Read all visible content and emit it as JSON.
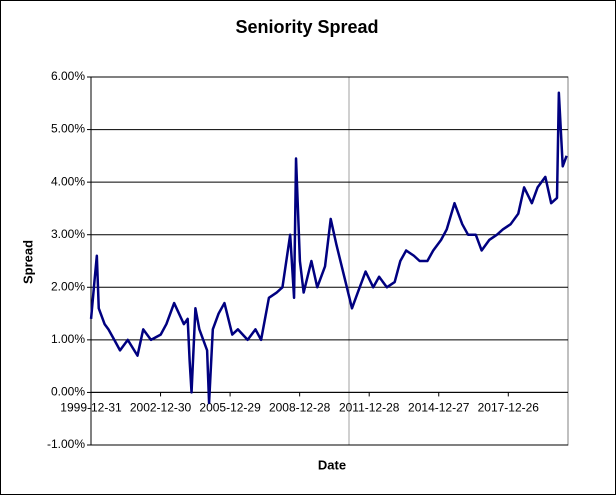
{
  "chart_data": {
    "type": "line",
    "title": "Seniority Spread",
    "x_label": "Date",
    "y_label": "Spread",
    "xlim": [
      "1999-12-31",
      "2020-07-23"
    ],
    "xticks": [
      "1999-12-31",
      "2002-12-30",
      "2005-12-29",
      "2008-12-28",
      "2011-12-28",
      "2014-12-27",
      "2017-12-26"
    ],
    "ylim": [
      -1,
      6
    ],
    "yticks": [
      {
        "value": -1,
        "label": "-1.00%"
      },
      {
        "value": 0,
        "label": "0.00%"
      },
      {
        "value": 1,
        "label": "1.00%"
      },
      {
        "value": 2,
        "label": "2.00%"
      },
      {
        "value": 3,
        "label": "3.00%"
      },
      {
        "value": 4,
        "label": "4.00%"
      },
      {
        "value": 5,
        "label": "5.00%"
      },
      {
        "value": 6,
        "label": "6.00%"
      }
    ],
    "grid": true,
    "x": [
      "2000-01",
      "2000-03",
      "2000-04",
      "2000-05",
      "2000-08",
      "2000-10",
      "2001-01",
      "2001-04",
      "2001-08",
      "2002-01",
      "2002-04",
      "2002-08",
      "2003-01",
      "2003-04",
      "2003-08",
      "2004-01",
      "2004-03",
      "2004-04",
      "2004-05",
      "2004-07",
      "2004-09",
      "2005-01",
      "2005-02",
      "2005-04",
      "2005-07",
      "2005-10",
      "2006-02",
      "2006-05",
      "2006-10",
      "2007-02",
      "2007-05",
      "2007-09",
      "2008-01",
      "2008-04",
      "2008-08",
      "2008-10",
      "2008-11",
      "2009-01",
      "2009-03",
      "2009-07",
      "2009-10",
      "2010-02",
      "2010-05",
      "2010-08",
      "2010-12",
      "2011-04",
      "2011-07",
      "2011-11",
      "2012-03",
      "2012-06",
      "2012-10",
      "2013-02",
      "2013-05",
      "2013-08",
      "2013-12",
      "2014-03",
      "2014-07",
      "2014-10",
      "2015-02",
      "2015-05",
      "2015-09",
      "2016-01",
      "2016-04",
      "2016-08",
      "2016-11",
      "2017-03",
      "2017-07",
      "2017-10",
      "2018-02",
      "2018-06",
      "2018-09",
      "2019-01",
      "2019-04",
      "2019-08",
      "2019-11",
      "2020-02",
      "2020-03",
      "2020-05",
      "2020-07"
    ],
    "series": [
      {
        "color": "#000080",
        "values": [
          1.4,
          2.2,
          2.6,
          1.6,
          1.3,
          1.2,
          1.0,
          0.8,
          1.0,
          0.7,
          1.2,
          1.0,
          1.1,
          1.3,
          1.7,
          1.3,
          1.4,
          0.6,
          0.0,
          1.6,
          1.2,
          0.8,
          -0.2,
          1.2,
          1.5,
          1.7,
          1.1,
          1.2,
          1.0,
          1.2,
          1.0,
          1.8,
          1.9,
          2.0,
          3.0,
          1.8,
          4.45,
          2.5,
          1.9,
          2.5,
          2.0,
          2.4,
          3.3,
          2.8,
          2.2,
          1.6,
          1.9,
          2.3,
          2.0,
          2.2,
          2.0,
          2.1,
          2.5,
          2.7,
          2.6,
          2.5,
          2.5,
          2.7,
          2.9,
          3.1,
          3.6,
          3.2,
          3.0,
          3.0,
          2.7,
          2.9,
          3.0,
          3.1,
          3.2,
          3.4,
          3.9,
          3.6,
          3.9,
          4.1,
          3.6,
          3.7,
          5.7,
          4.3,
          4.5
        ]
      }
    ]
  }
}
